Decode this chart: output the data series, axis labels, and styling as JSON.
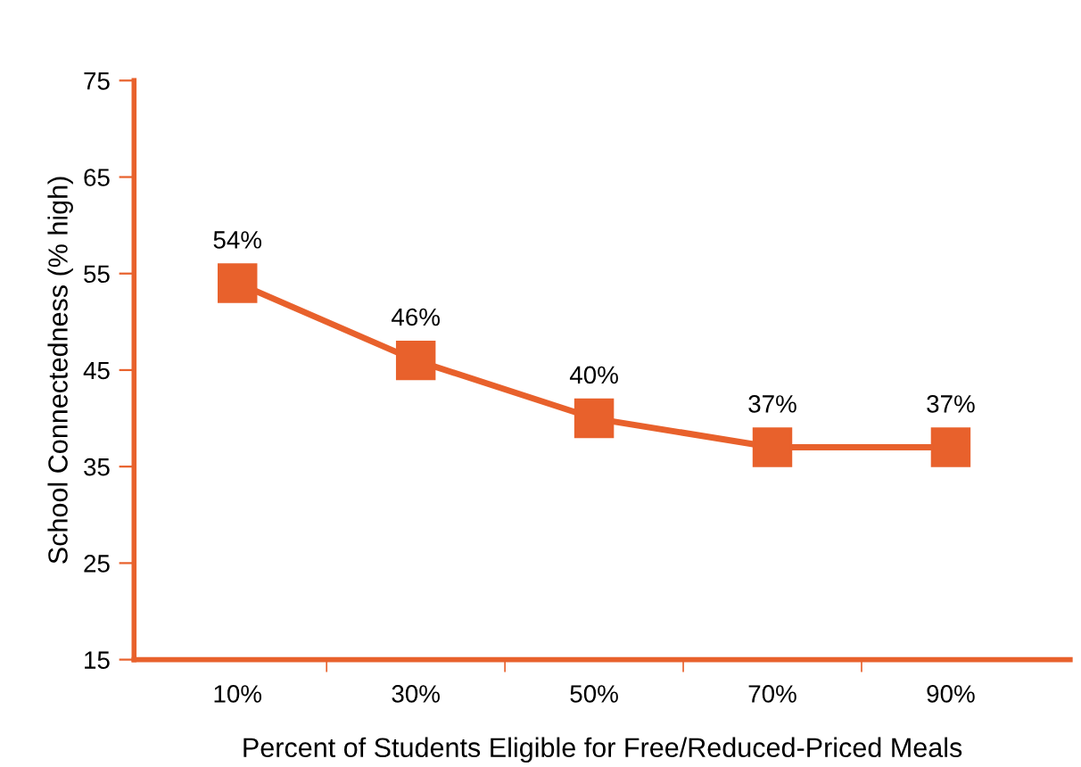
{
  "chart_data": {
    "type": "line",
    "xlabel": "Percent of Students Eligible for Free/Reduced-Priced Meals",
    "ylabel": "School Connectedness (% high)",
    "categories": [
      "10%",
      "30%",
      "50%",
      "70%",
      "90%"
    ],
    "series": [
      {
        "color": "#e8612c",
        "values": [
          54,
          46,
          40,
          37,
          37
        ],
        "value_labels": [
          "54%",
          "46%",
          "40%",
          "37%",
          "37%"
        ]
      }
    ],
    "ylim": [
      15,
      75
    ],
    "yticks": [
      15,
      25,
      35,
      45,
      55,
      65,
      75
    ],
    "marker": "square",
    "line_style": "solid",
    "grid": false,
    "legend": false
  }
}
